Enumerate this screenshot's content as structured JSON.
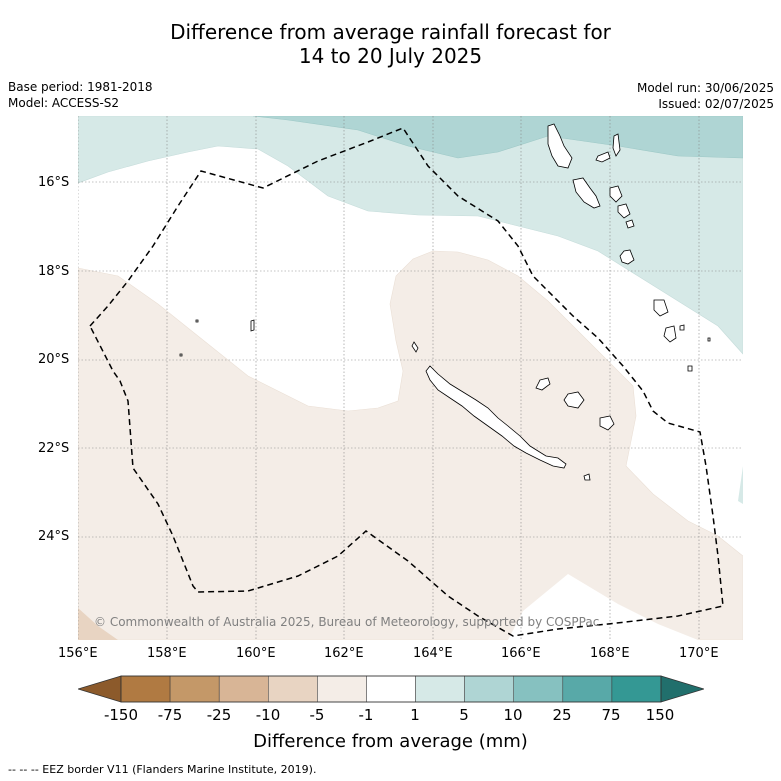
{
  "title_line1": "Difference from average rainfall forecast for",
  "title_line2": "14 to 20 July 2025",
  "base_period": "Base period: 1981-2018",
  "model": "Model: ACCESS-S2",
  "model_run": "Model run: 30/06/2025",
  "issued": "Issued: 02/07/2025",
  "copyright": "© Commonwealth of Australia 2025, Bureau of Meteorology, supported by COSPPac",
  "lat_labels": [
    "16°S",
    "18°S",
    "20°S",
    "22°S",
    "24°S"
  ],
  "lon_labels": [
    "156°E",
    "158°E",
    "160°E",
    "162°E",
    "164°E",
    "166°E",
    "168°E",
    "170°E"
  ],
  "colorbar": {
    "title": "Difference from average (mm)",
    "labels": [
      "-150",
      "-75",
      "-25",
      "-10",
      "-5",
      "-1",
      "1",
      "5",
      "10",
      "25",
      "75",
      "150"
    ],
    "colors": [
      "#8c5a2b",
      "#b07a42",
      "#c49868",
      "#d8b596",
      "#e8d4c2",
      "#f4ede7",
      "#ffffff",
      "#d6e9e7",
      "#afd5d4",
      "#86c1c0",
      "#58a9a8",
      "#349894",
      "#216f6c"
    ]
  },
  "legend_footer": "--  --  -- EEZ border V11 (Flanders Marine Institute, 2019)."
}
